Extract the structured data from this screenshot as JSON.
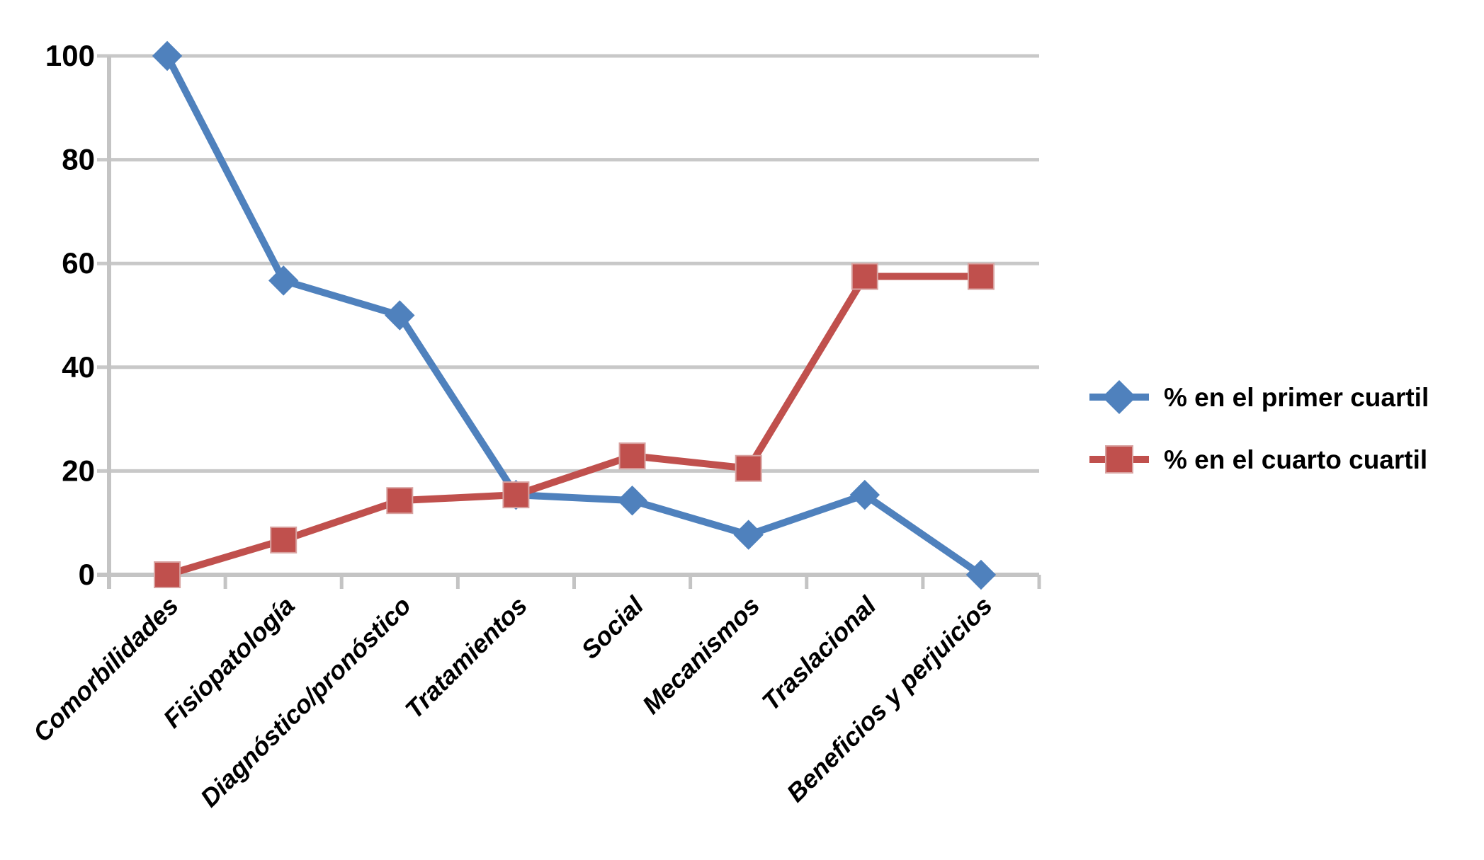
{
  "chart_data": {
    "type": "line",
    "title": "",
    "xlabel": "",
    "ylabel": "",
    "categories": [
      "Comorbilidades",
      "Fisiopatología",
      "Diagnóstico/pronóstico",
      "Tratamientos",
      "Social",
      "Mecanismos",
      "Traslacional",
      "Beneficios y perjuicios"
    ],
    "series": [
      {
        "name": "% en el primer cuartil",
        "marker": "diamond",
        "color": "#4F81BD",
        "values": [
          100,
          56.7,
          50,
          15.4,
          14.3,
          7.7,
          15.4,
          0
        ]
      },
      {
        "name": "% en el cuarto cuartil",
        "marker": "square",
        "color": "#C0504D",
        "values": [
          0,
          6.7,
          14.3,
          15.4,
          22.9,
          20.5,
          57.5,
          57.5
        ]
      }
    ],
    "ylim": [
      0,
      100
    ],
    "yticks": [
      0,
      20,
      40,
      60,
      80,
      100
    ],
    "grid": true,
    "legend_position": "right"
  },
  "colors": {
    "primer_cuartil": "#4F81BD",
    "cuarto_cuartil": "#C0504D",
    "square_marker_edge": "#D8A2A0",
    "gridline": "#C8C8C8",
    "axis": "#C4C4C4",
    "text": "#000000",
    "background": "#FFFFFF"
  }
}
